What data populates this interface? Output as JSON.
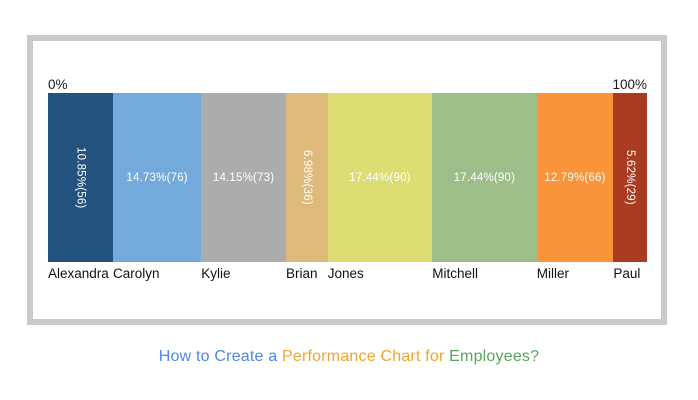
{
  "chart_data": {
    "type": "bar",
    "subtype": "stacked-horizontal-100",
    "axis": {
      "left_label": "0%",
      "right_label": "100%"
    },
    "categories": [
      "Alexandra",
      "Carolyn",
      "Kylie",
      "Brian",
      "Jones",
      "Mitchell",
      "Miller",
      "Paul"
    ],
    "values_percent": [
      10.85,
      14.73,
      14.15,
      6.98,
      17.44,
      17.44,
      12.79,
      5.62
    ],
    "values_count": [
      56,
      76,
      73,
      36,
      90,
      90,
      66,
      29
    ],
    "segments": [
      {
        "name": "Alexandra",
        "percent": 10.85,
        "count": 56,
        "label": "10.85%(56)",
        "color": "#25537F",
        "rotated": true
      },
      {
        "name": "Carolyn",
        "percent": 14.73,
        "count": 76,
        "label": "14.73%(76)",
        "color": "#73A9DB",
        "rotated": false
      },
      {
        "name": "Kylie",
        "percent": 14.15,
        "count": 73,
        "label": "14.15%(73)",
        "color": "#ACACAC",
        "rotated": false
      },
      {
        "name": "Brian",
        "percent": 6.98,
        "count": 36,
        "label": "6.98%(36)",
        "color": "#DEBA7A",
        "rotated": true
      },
      {
        "name": "Jones",
        "percent": 17.44,
        "count": 90,
        "label": "17.44%(90)",
        "color": "#DCDD72",
        "rotated": false
      },
      {
        "name": "Mitchell",
        "percent": 17.44,
        "count": 90,
        "label": "17.44%(90)",
        "color": "#9DBE89",
        "rotated": false
      },
      {
        "name": "Miller",
        "percent": 12.79,
        "count": 66,
        "label": "12.79%(66)",
        "color": "#F9943B",
        "rotated": false
      },
      {
        "name": "Paul",
        "percent": 5.62,
        "count": 29,
        "label": "5.62%(29)",
        "color": "#A93B20",
        "rotated": true
      }
    ],
    "frame_border_color": "#C9C9C9",
    "value_label_color": "#FFFFFF",
    "xlim": [
      0,
      100
    ],
    "grid": false,
    "legend": false
  },
  "caption": {
    "parts": [
      {
        "text": "How to Create a ",
        "color": "#4E86EC"
      },
      {
        "text": "Performance Chart for ",
        "color": "#F0A42F"
      },
      {
        "text": "Employees?",
        "color": "#56A45C"
      }
    ]
  }
}
